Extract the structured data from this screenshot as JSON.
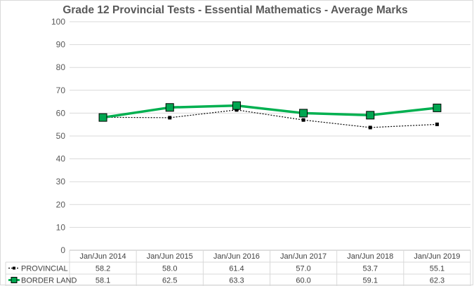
{
  "chart_data": {
    "type": "line",
    "title": "Grade 12 Provincial Tests - Essential Mathematics - Average Marks",
    "categories": [
      "Jan/Jun 2014",
      "Jan/Jun 2015",
      "Jan/Jun 2016",
      "Jan/Jun 2017",
      "Jan/Jun 2018",
      "Jan/Jun 2019"
    ],
    "y_ticks": [
      "0",
      "10",
      "20",
      "30",
      "40",
      "50",
      "60",
      "70",
      "80",
      "90",
      "100"
    ],
    "ylim": [
      0,
      100
    ],
    "grid": true,
    "legend": "data-table",
    "series": [
      {
        "name": "PROVINCIAL",
        "values": [
          58.2,
          58.0,
          61.4,
          57.0,
          53.7,
          55.1
        ],
        "labels": [
          "58.2",
          "58.0",
          "61.4",
          "57.0",
          "53.7",
          "55.1"
        ],
        "color": "#000000",
        "marker_fill": "#000000"
      },
      {
        "name": "BORDER LAND",
        "values": [
          58.1,
          62.5,
          63.3,
          60.0,
          59.1,
          62.3
        ],
        "labels": [
          "58.1",
          "62.5",
          "63.3",
          "60.0",
          "59.1",
          "62.3"
        ],
        "color": "#00b050",
        "marker_fill": "#00a650"
      }
    ]
  }
}
